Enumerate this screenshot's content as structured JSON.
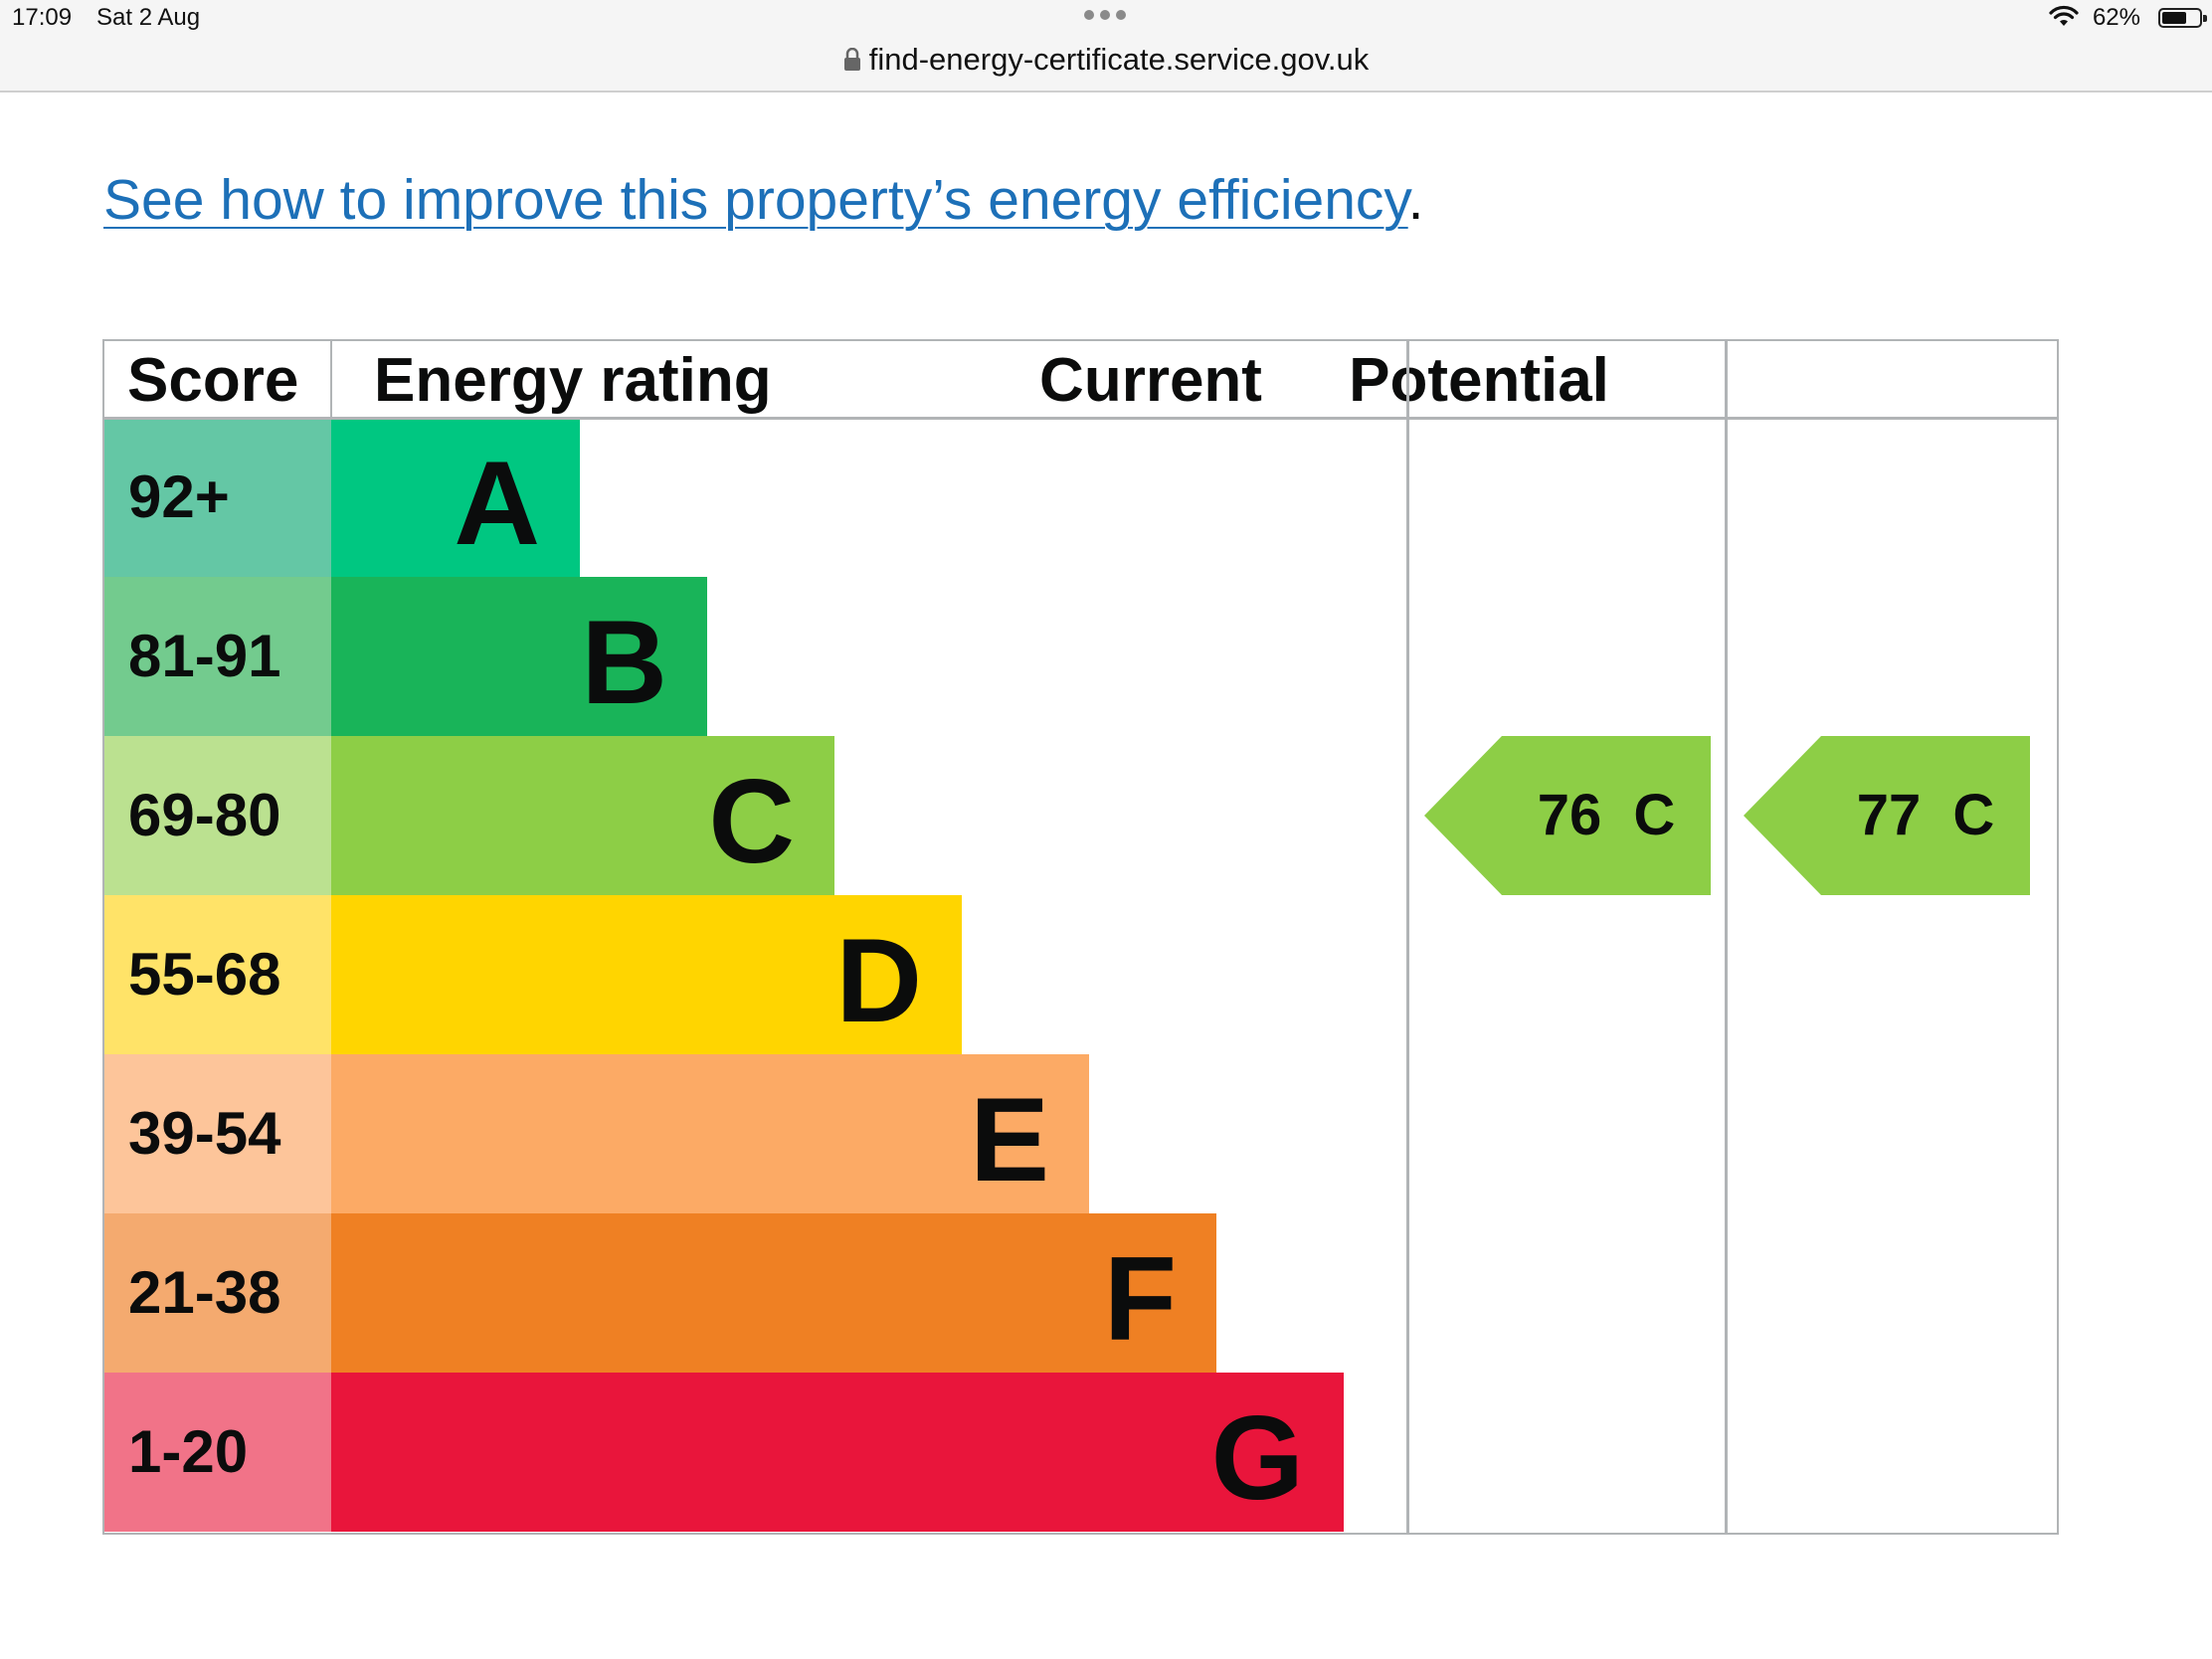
{
  "status_bar": {
    "time": "17:09",
    "date": "Sat 2 Aug",
    "url": "find-energy-certificate.service.gov.uk",
    "battery": "62%"
  },
  "page": {
    "link_text": "See how to improve this property’s energy efficiency",
    "link_suffix": "."
  },
  "epc_table": {
    "headers": {
      "score": "Score",
      "rating": "Energy rating",
      "current": "Current",
      "potential": "Potential"
    },
    "bands": [
      {
        "score": "92+",
        "letter": "A",
        "color": "#00c781",
        "score_color": "#64c7a5"
      },
      {
        "score": "81-91",
        "letter": "B",
        "color": "#19b459",
        "score_color": "#73cb8e"
      },
      {
        "score": "69-80",
        "letter": "C",
        "color": "#8dce46",
        "score_color": "#bbe190"
      },
      {
        "score": "55-68",
        "letter": "D",
        "color": "#ffd500",
        "score_color": "#ffe368"
      },
      {
        "score": "39-54",
        "letter": "E",
        "color": "#fcaa65",
        "score_color": "#fdc59a"
      },
      {
        "score": "21-38",
        "letter": "F",
        "color": "#ef8023",
        "score_color": "#f4aa6f"
      },
      {
        "score": "1-20",
        "letter": "G",
        "color": "#e9153b",
        "score_color": "#f17388"
      }
    ],
    "current": {
      "score": "76",
      "letter": "C",
      "band_index": 2,
      "color": "#8dce46"
    },
    "potential": {
      "score": "77",
      "letter": "C",
      "band_index": 2,
      "color": "#8dce46"
    }
  }
}
